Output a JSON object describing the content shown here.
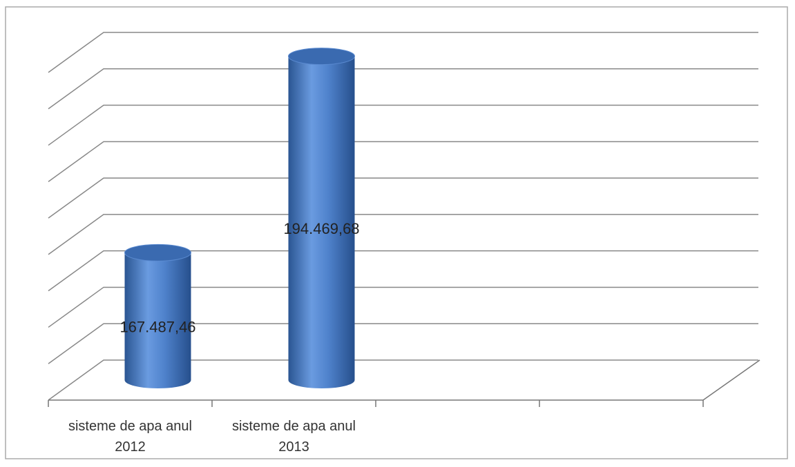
{
  "chart_data": {
    "type": "bar3d",
    "categories": [
      "sisteme de apa anul 2012",
      "sisteme de apa anul 2013",
      null,
      null
    ],
    "values": [
      167487.46,
      194469.68,
      null,
      null
    ],
    "value_labels": [
      "167.487,46",
      "194.469,68",
      null,
      null
    ],
    "color": "#4a7cc4",
    "ylim": [
      150000,
      195000
    ],
    "yticks": [
      150000,
      155000,
      160000,
      165000,
      170000,
      175000,
      180000,
      185000,
      190000,
      195000
    ],
    "grid": true
  }
}
